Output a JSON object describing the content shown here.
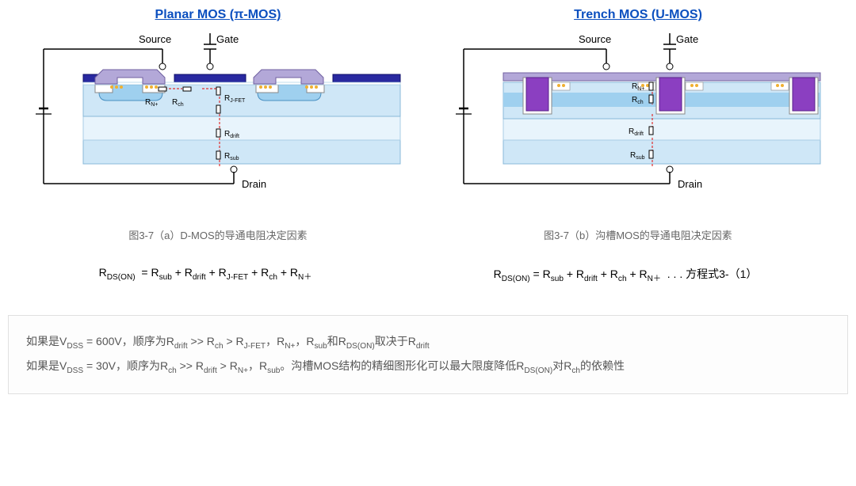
{
  "left": {
    "title": "Planar MOS (π-MOS)",
    "source": "Source",
    "gate": "Gate",
    "drain": "Drain",
    "caption": "图3-7（a）D-MOS的导通电阻决定因素",
    "equation": "R<sub>DS(ON)</sub> &nbsp;= R<sub>sub</sub> + R<sub>drift</sub> + R<sub>J-FET</sub> + R<sub>ch</sub> + R<sub>N＋</sub>",
    "r_labels": [
      "RN+",
      "Rch",
      "RJ-FET",
      "Rdrift",
      "Rsub"
    ]
  },
  "right": {
    "title": "Trench MOS (U-MOS)",
    "source": "Source",
    "gate": "Gate",
    "drain": "Drain",
    "caption": "图3-7（b）沟槽MOS的导通电阻决定因素",
    "equation": "R<sub>DS(ON)</sub> = R<sub>sub</sub> + R<sub>drift</sub> + R<sub>ch</sub> + R<sub>N＋</sub> &nbsp;.&nbsp;.&nbsp;. 方程式3-（1）",
    "r_labels": [
      "RN+",
      "Rch",
      "Rdrift",
      "Rsub"
    ]
  },
  "colors": {
    "title": "#0b4fbf",
    "layer_light": "#cfe7f7",
    "layer_med": "#9fd0ef",
    "metal": "#b3a8d8",
    "poly": "#2929a0",
    "trench_fill": "#8b3fc1",
    "source_metal": "#b3a8d8",
    "contact_dots": "#f0b030",
    "wire": "#000000",
    "redline": "#e03030",
    "resistor_fill": "#ffffff"
  },
  "note": {
    "line1": "如果是V<sub>DSS</sub> = 600V，顺序为R<sub>drift</sub> &gt;&gt; R<sub>ch</sub> &gt; R<sub>J-FET</sub>，R<sub>N+</sub>，R<sub>sub</sub>和R<sub>DS(ON)</sub>取决于R<sub>drift</sub>",
    "line2": "如果是V<sub>DSS</sub> = 30V，顺序为R<sub>ch</sub> &gt;&gt; R<sub>drift</sub> &gt; R<sub>N+</sub>，R<sub>sub</sub>。沟槽MOS结构的精细图形化可以最大限度降低R<sub>DS(ON)</sub>对R<sub>ch</sub>的依赖性"
  }
}
